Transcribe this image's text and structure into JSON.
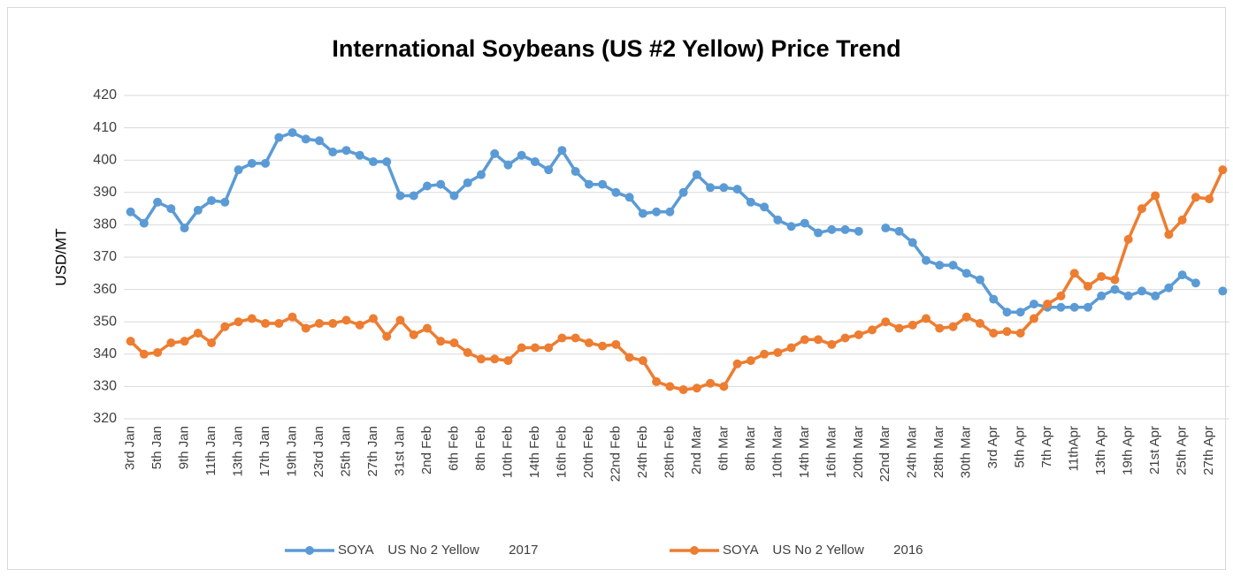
{
  "chart_data": {
    "type": "line",
    "title": "International Soybeans (US #2 Yellow) Price Trend",
    "y_label": "USD/MT",
    "categories": [
      "3rd Jan",
      null,
      "5th Jan",
      null,
      "9th Jan",
      null,
      "11th Jan",
      null,
      "13th Jan",
      null,
      "17th Jan",
      null,
      "19th Jan",
      null,
      "23rd Jan",
      null,
      "25th Jan",
      null,
      "27th Jan",
      null,
      "31st Jan",
      null,
      "2nd Feb",
      null,
      "6th Feb",
      null,
      "8th Feb",
      null,
      "10th Feb",
      null,
      "14th Feb",
      null,
      "16th Feb",
      null,
      "20th Feb",
      null,
      "22nd Feb",
      null,
      "24th Feb",
      null,
      "28th Feb",
      null,
      "2nd Mar",
      null,
      "6th Mar",
      null,
      "8th Mar",
      null,
      "10th Mar",
      null,
      "14th Mar",
      null,
      "16th Mar",
      null,
      "20th Mar",
      null,
      "22nd Mar",
      null,
      "24th Mar",
      null,
      "28th Mar",
      null,
      "30th Mar",
      null,
      "3rd Apr",
      null,
      "5th Apr",
      null,
      "7th Apr",
      null,
      "11thApr",
      null,
      "13th Apr",
      null,
      "19th Apr",
      null,
      "21st Apr",
      null,
      "25th Apr",
      null,
      "27th Apr",
      null
    ],
    "series": [
      {
        "name": "SOYA    US No 2 Yellow        2017",
        "color": "#5b9bd5",
        "values": [
          384,
          380.5,
          387,
          385,
          379,
          384.5,
          387.5,
          387,
          397,
          399,
          399,
          407,
          408.5,
          406.5,
          406,
          402.5,
          403,
          401.5,
          399.5,
          399.5,
          389,
          389,
          392,
          392.5,
          389,
          393,
          395.5,
          402,
          398.5,
          401.5,
          399.5,
          397,
          403,
          396.5,
          392.5,
          392.5,
          390,
          388.5,
          383.5,
          384,
          384,
          390,
          395.5,
          391.5,
          391.5,
          391,
          387,
          385.5,
          381.5,
          379.5,
          380.5,
          377.5,
          378.5,
          378.5,
          378,
          null,
          379,
          378,
          374.5,
          369,
          367.5,
          367.5,
          365,
          363,
          357,
          353,
          353,
          355.5,
          354.5,
          354.5,
          354.5,
          354.5,
          358,
          360,
          358,
          359.5,
          358,
          360.5,
          364.5,
          362,
          null,
          359.5
        ]
      },
      {
        "name": "SOYA    US No 2 Yellow        2016",
        "color": "#ed7d31",
        "values": [
          344,
          340,
          340.5,
          343.5,
          344,
          346.5,
          343.5,
          348.5,
          350,
          351,
          349.5,
          349.5,
          351.5,
          348,
          349.5,
          349.5,
          350.5,
          349,
          351,
          345.5,
          350.5,
          346,
          348,
          344,
          343.5,
          340.5,
          338.5,
          338.5,
          338,
          342,
          342,
          342,
          345,
          345,
          343.5,
          342.5,
          343,
          339,
          338,
          331.5,
          330,
          329,
          329.5,
          331,
          330,
          337,
          338,
          340,
          340.5,
          342,
          344.5,
          344.5,
          343,
          345,
          346,
          347.5,
          350,
          348,
          349,
          351,
          348,
          348.5,
          351.5,
          349.5,
          346.5,
          347,
          346.5,
          351,
          355.5,
          358,
          365,
          361,
          364,
          363,
          375.5,
          385,
          389,
          377,
          381.5,
          388.5,
          388,
          397
        ]
      }
    ],
    "ylim": [
      320,
      420
    ],
    "yticks": [
      320,
      330,
      340,
      350,
      360,
      370,
      380,
      390,
      400,
      410,
      420
    ],
    "grid": true,
    "legend": "bottom"
  }
}
